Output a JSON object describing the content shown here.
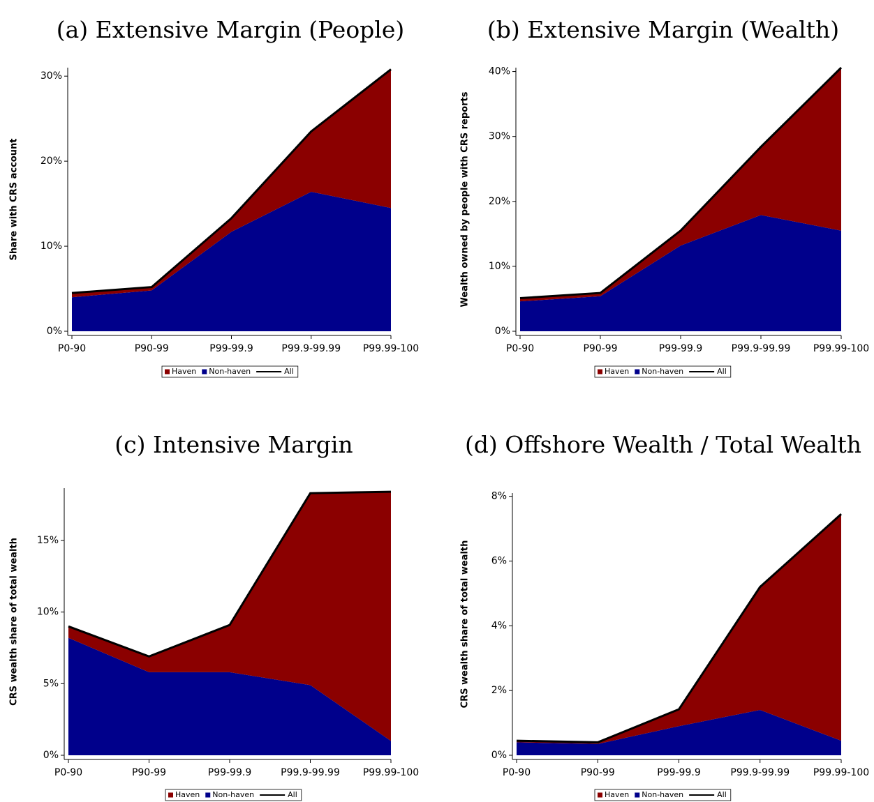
{
  "chart_data": [
    {
      "type": "area",
      "title": "(a) Extensive Margin (People)",
      "ylabel": "Share with CRS account",
      "categories": [
        "P0-90",
        "P90-99",
        "P99-99.9",
        "P99.9-99.99",
        "P99.99-100"
      ],
      "series": [
        {
          "name": "Haven",
          "type": "area",
          "color": "#8b0000",
          "values": [
            0.5,
            0.4,
            1.6,
            7.1,
            16.3
          ]
        },
        {
          "name": "Non-haven",
          "type": "area",
          "color": "#00008b",
          "values": [
            4.0,
            4.8,
            11.7,
            16.4,
            14.5
          ]
        },
        {
          "name": "All",
          "type": "line",
          "color": "#000000",
          "values": [
            4.5,
            5.2,
            13.3,
            23.5,
            30.8
          ]
        }
      ],
      "ylim": [
        0,
        31
      ],
      "yticks": [
        {
          "value": 0,
          "label": "0%"
        },
        {
          "value": 10,
          "label": "10%"
        },
        {
          "value": 20,
          "label": "20%"
        },
        {
          "value": 30,
          "label": "30%"
        }
      ]
    },
    {
      "type": "area",
      "title": "(b) Extensive Margin (Wealth)",
      "ylabel": "Wealth owned by people with CRS reports",
      "categories": [
        "P0-90",
        "P90-99",
        "P99-99.9",
        "P99.9-99.99",
        "P99.99-100"
      ],
      "series": [
        {
          "name": "Haven",
          "type": "area",
          "color": "#8b0000",
          "values": [
            0.5,
            0.5,
            2.3,
            10.5,
            25.1
          ]
        },
        {
          "name": "Non-haven",
          "type": "area",
          "color": "#00008b",
          "values": [
            4.6,
            5.4,
            13.2,
            17.9,
            15.5
          ]
        },
        {
          "name": "All",
          "type": "line",
          "color": "#000000",
          "values": [
            5.1,
            5.9,
            15.5,
            28.4,
            40.6
          ]
        }
      ],
      "ylim": [
        0,
        40.6
      ],
      "yticks": [
        {
          "value": 0,
          "label": "0%"
        },
        {
          "value": 10,
          "label": "10%"
        },
        {
          "value": 20,
          "label": "20%"
        },
        {
          "value": 30,
          "label": "30%"
        },
        {
          "value": 40,
          "label": "40%"
        }
      ]
    },
    {
      "type": "area",
      "title": "(c) Intensive Margin",
      "ylabel": "CRS wealth share of total wealth",
      "categories": [
        "P0-90",
        "P90-99",
        "P99-99.9",
        "P99.9-99.99",
        "P99.99-100"
      ],
      "series": [
        {
          "name": "Haven",
          "type": "area",
          "color": "#8b0000",
          "values": [
            0.8,
            1.1,
            3.3,
            13.4,
            17.4
          ]
        },
        {
          "name": "Non-haven",
          "type": "area",
          "color": "#00008b",
          "values": [
            8.2,
            5.8,
            5.8,
            4.9,
            1.0
          ]
        },
        {
          "name": "All",
          "type": "line",
          "color": "#000000",
          "values": [
            9.0,
            6.9,
            9.1,
            18.3,
            18.4
          ]
        }
      ],
      "ylim": [
        0,
        18.65
      ],
      "yticks": [
        {
          "value": 0,
          "label": "0%"
        },
        {
          "value": 5,
          "label": "5%"
        },
        {
          "value": 10,
          "label": "10%"
        },
        {
          "value": 15,
          "label": "15%"
        }
      ]
    },
    {
      "type": "area",
      "title": "(d) Offshore Wealth / Total Wealth",
      "ylabel": "CRS wealth share of total wealth",
      "categories": [
        "P0-90",
        "P90-99",
        "P99-99.9",
        "P99.9-99.99",
        "P99.99-100"
      ],
      "series": [
        {
          "name": "Haven",
          "type": "area",
          "color": "#8b0000",
          "values": [
            0.05,
            0.05,
            0.52,
            3.8,
            7.0
          ]
        },
        {
          "name": "Non-haven",
          "type": "area",
          "color": "#00008b",
          "values": [
            0.4,
            0.35,
            0.9,
            1.4,
            0.45
          ]
        },
        {
          "name": "All",
          "type": "line",
          "color": "#000000",
          "values": [
            0.45,
            0.4,
            1.42,
            5.2,
            7.45
          ]
        }
      ],
      "ylim": [
        0,
        8.1
      ],
      "yticks": [
        {
          "value": 0,
          "label": "0%"
        },
        {
          "value": 2,
          "label": "2%"
        },
        {
          "value": 4,
          "label": "4%"
        },
        {
          "value": 6,
          "label": "6%"
        },
        {
          "value": 8,
          "label": "8%"
        }
      ]
    }
  ]
}
